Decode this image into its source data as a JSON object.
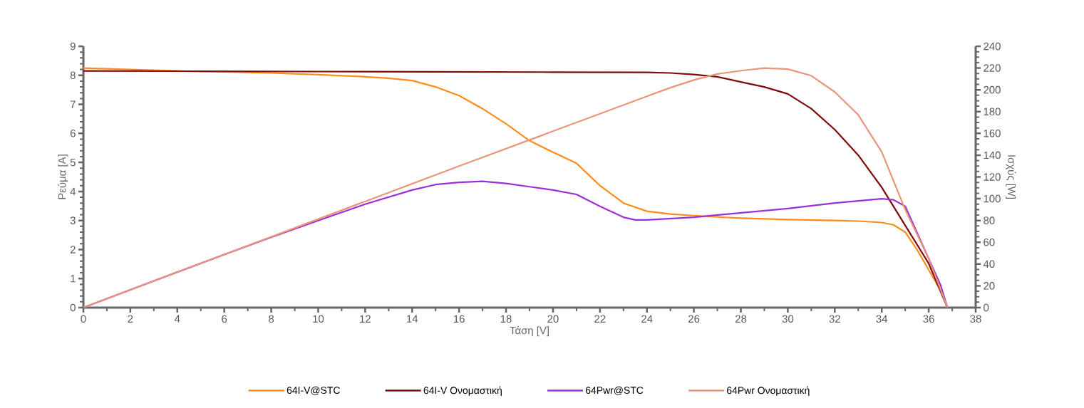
{
  "chart_data": {
    "type": "line",
    "xlabel": "Τάση [V]",
    "ylabel": "Ρεύμα [A]",
    "y2label": "Ισχύς [W]",
    "xlim": [
      0,
      38
    ],
    "xticks": [
      0,
      2,
      4,
      6,
      8,
      10,
      12,
      14,
      16,
      18,
      20,
      22,
      24,
      26,
      28,
      30,
      32,
      34,
      36,
      38
    ],
    "ylim": [
      0,
      9
    ],
    "yticks": [
      0,
      1,
      2,
      3,
      4,
      5,
      6,
      7,
      8,
      9
    ],
    "y2lim": [
      0,
      240
    ],
    "y2ticks": [
      0,
      20,
      40,
      60,
      80,
      100,
      120,
      140,
      160,
      180,
      200,
      220,
      240
    ],
    "legend": "bottom",
    "series": [
      {
        "name": "64I-V@STC",
        "color": "#ff8c1a",
        "x": [
          0,
          2,
          4,
          6,
          8,
          10,
          12,
          13,
          14,
          15,
          16,
          17,
          18,
          19,
          20,
          21,
          22,
          23,
          24,
          25,
          26,
          27,
          28,
          30,
          32,
          33,
          34,
          34.5,
          35,
          35.5,
          36,
          36.5,
          36.8
        ],
        "values": [
          8.25,
          8.2,
          8.15,
          8.12,
          8.08,
          8.02,
          7.95,
          7.9,
          7.82,
          7.6,
          7.3,
          6.85,
          6.33,
          5.75,
          5.35,
          4.97,
          4.2,
          3.6,
          3.32,
          3.22,
          3.17,
          3.12,
          3.08,
          3.03,
          3.0,
          2.98,
          2.93,
          2.85,
          2.6,
          2.0,
          1.3,
          0.6,
          0
        ]
      },
      {
        "name": "64I-V Ονομαστική",
        "color": "#7f0a0a",
        "x": [
          0,
          5,
          10,
          15,
          20,
          24,
          25,
          26,
          27,
          28,
          29,
          30,
          31,
          32,
          33,
          34,
          35,
          36,
          36.8
        ],
        "values": [
          8.15,
          8.14,
          8.13,
          8.12,
          8.11,
          8.1,
          8.08,
          8.03,
          7.95,
          7.77,
          7.6,
          7.36,
          6.85,
          6.13,
          5.25,
          4.14,
          2.83,
          1.52,
          0
        ]
      },
      {
        "name": "64Pwr@STC",
        "color": "#9b30d9",
        "axis": "y2",
        "x": [
          0,
          2,
          4,
          6,
          8,
          10,
          12,
          14,
          15,
          16,
          17,
          18,
          19,
          20,
          21,
          22,
          23,
          23.5,
          24,
          26,
          28,
          30,
          32,
          33,
          34,
          34.5,
          35,
          35.5,
          36,
          36.5,
          36.8
        ],
        "values": [
          0,
          16.4,
          32.6,
          48.7,
          64.6,
          80,
          95,
          108,
          113,
          115,
          116,
          114,
          111,
          108,
          104,
          93,
          83,
          80.5,
          80.5,
          83,
          87,
          91,
          96,
          98,
          100,
          99,
          93,
          69,
          45,
          21,
          0
        ]
      },
      {
        "name": "64Pwr Ονομαστική",
        "color": "#e8957a",
        "axis": "y2",
        "x": [
          0,
          4,
          8,
          12,
          16,
          20,
          24,
          25,
          26,
          27,
          28,
          29,
          30,
          31,
          32,
          33,
          34,
          35,
          36,
          36.8
        ],
        "values": [
          0,
          32.6,
          65,
          97.5,
          130,
          162,
          194,
          202,
          209,
          214.6,
          217.6,
          220,
          219,
          213,
          198,
          177,
          143,
          90,
          45,
          0
        ]
      }
    ]
  }
}
